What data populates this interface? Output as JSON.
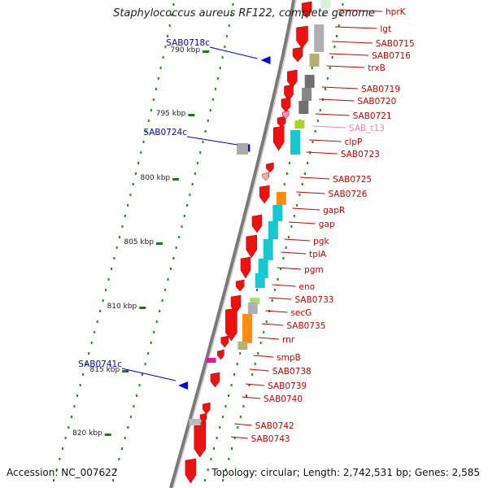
{
  "title": "Staphylococcus aureus RF122, complete genome",
  "footer": {
    "accession_label": "Accession: NC_007622",
    "topology_label": "Topology: circular; Length: 2,742,531 bp; Genes: 2,585"
  },
  "colors": {
    "backbone": "#7a7a7a",
    "gene_red": "#ee1111",
    "label_red": "#cc0000",
    "label_pink": "#ee88aa",
    "label_blue": "#0000cc",
    "tick_green": "#1a7a1a",
    "cyan": "#18c8d0",
    "orange": "#ff8c10",
    "olive": "#b8b070"
  },
  "kbp_ticks": [
    "790 kbp",
    "795 kbp",
    "800 kbp",
    "805 kbp",
    "810 kbp",
    "815 kbp",
    "820 kbp"
  ],
  "genes_right": [
    {
      "name": "hprK"
    },
    {
      "name": "lgt"
    },
    {
      "name": "SAB0715"
    },
    {
      "name": "SAB0716"
    },
    {
      "name": "trxB"
    },
    {
      "name": "SAB0719"
    },
    {
      "name": "SAB0720"
    },
    {
      "name": "SAB0721"
    },
    {
      "name": "SAB_t13",
      "pink": true
    },
    {
      "name": "clpP"
    },
    {
      "name": "SAB0723"
    },
    {
      "name": "SAB0725"
    },
    {
      "name": "SAB0726"
    },
    {
      "name": "gapR"
    },
    {
      "name": "gap"
    },
    {
      "name": "pgk"
    },
    {
      "name": "tpiA"
    },
    {
      "name": "pgm"
    },
    {
      "name": "eno"
    },
    {
      "name": "SAB0733"
    },
    {
      "name": "secG"
    },
    {
      "name": "SAB0735"
    },
    {
      "name": "rnr"
    },
    {
      "name": "smpB"
    },
    {
      "name": "SAB0738"
    },
    {
      "name": "SAB0739"
    },
    {
      "name": "SAB0740"
    },
    {
      "name": "SAB0742"
    },
    {
      "name": "SAB0743"
    }
  ],
  "genes_left": [
    {
      "name": "SAB0718c"
    },
    {
      "name": "SAB0724c"
    },
    {
      "name": "SAB0741c"
    }
  ]
}
